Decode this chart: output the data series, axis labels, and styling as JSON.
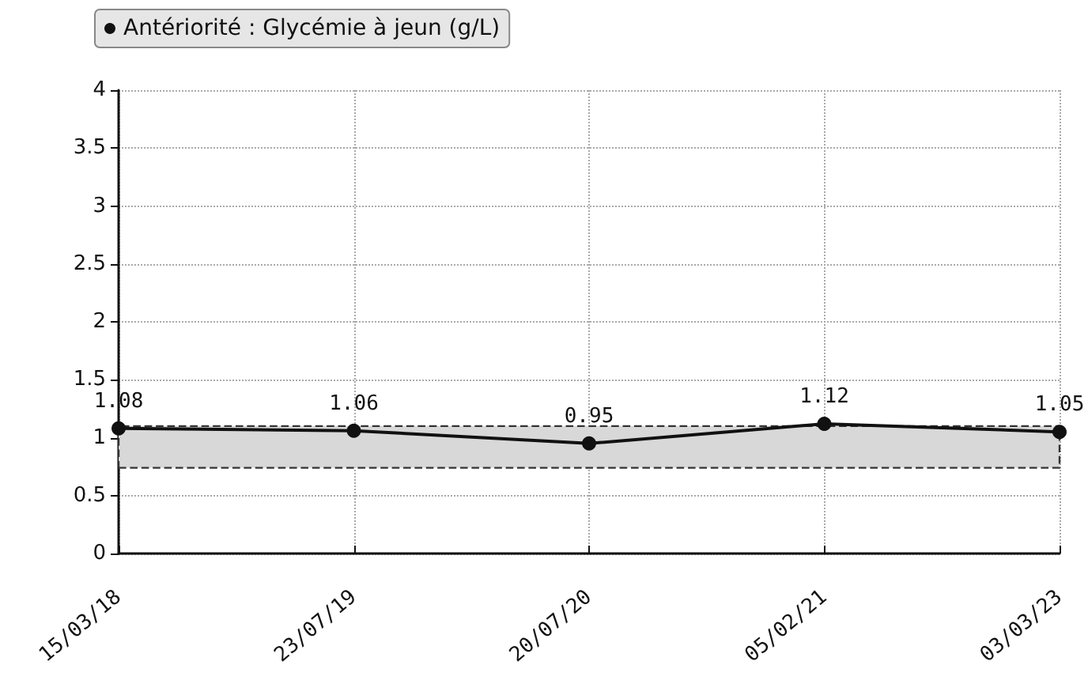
{
  "chart_data": {
    "type": "line",
    "categories": [
      "15/03/18",
      "23/07/19",
      "20/07/20",
      "05/02/21",
      "03/03/23"
    ],
    "series": [
      {
        "name": "Antériorité : Glycémie à jeun (g/L)",
        "color": "#111111",
        "values": [
          1.08,
          1.06,
          0.95,
          1.12,
          1.05
        ]
      }
    ],
    "bands": [
      {
        "axis": "y",
        "from": 0.74,
        "to": 1.1,
        "color": "#d8d8d8"
      }
    ],
    "ylim": [
      0,
      4
    ],
    "yticks": [
      0,
      0.5,
      1,
      1.5,
      2,
      2.5,
      3,
      3.5,
      4
    ],
    "grid": true,
    "legend": "top left",
    "marker": "circle",
    "line_style": "solid",
    "data_labels": true
  }
}
